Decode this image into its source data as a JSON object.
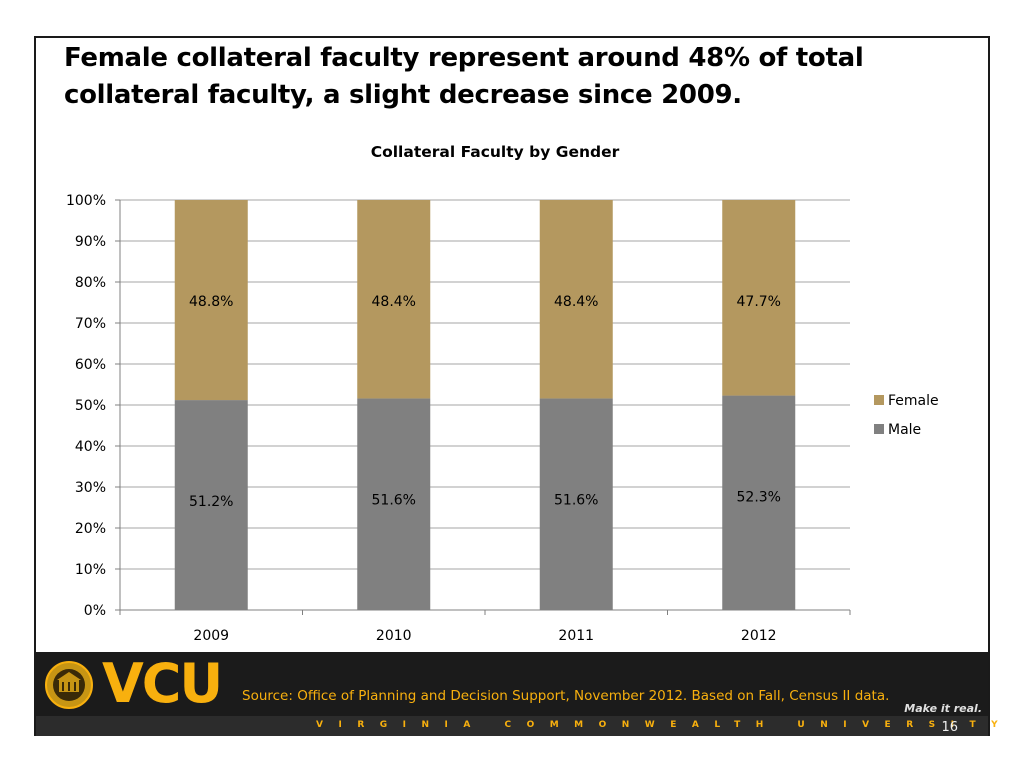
{
  "slide": {
    "headline": "Female collateral faculty represent around 48% of total collateral faculty, a slight decrease since 2009.",
    "page_number": "16"
  },
  "footer": {
    "logo_text": "VCU",
    "source": "Source: Office of Planning and Decision Support, November 2012. Based on Fall, Census II data.",
    "tagline": "Make it real.",
    "university": "VIRGINIA COMMONWEALTH UNIVERSITY"
  },
  "colors": {
    "female": "#b4985f",
    "male": "#808080",
    "brand_gold": "#f8b00e",
    "footer_bg": "#1b1b1b"
  },
  "chart_data": {
    "type": "bar",
    "stacked": true,
    "title": "Collateral Faculty by Gender",
    "xlabel": "",
    "ylabel": "",
    "categories": [
      "2009",
      "2010",
      "2011",
      "2012"
    ],
    "series": [
      {
        "name": "Male",
        "values": [
          51.2,
          51.6,
          51.6,
          52.3
        ],
        "labels": [
          "51.2%",
          "51.6%",
          "51.6%",
          "52.3%"
        ]
      },
      {
        "name": "Female",
        "values": [
          48.8,
          48.4,
          48.4,
          47.7
        ],
        "labels": [
          "48.8%",
          "48.4%",
          "48.4%",
          "47.7%"
        ]
      }
    ],
    "ylim": [
      0,
      100
    ],
    "yticks": [
      "0%",
      "10%",
      "20%",
      "30%",
      "40%",
      "50%",
      "60%",
      "70%",
      "80%",
      "90%",
      "100%"
    ],
    "legend": [
      "Female",
      "Male"
    ],
    "legend_position": "right",
    "grid": true
  }
}
